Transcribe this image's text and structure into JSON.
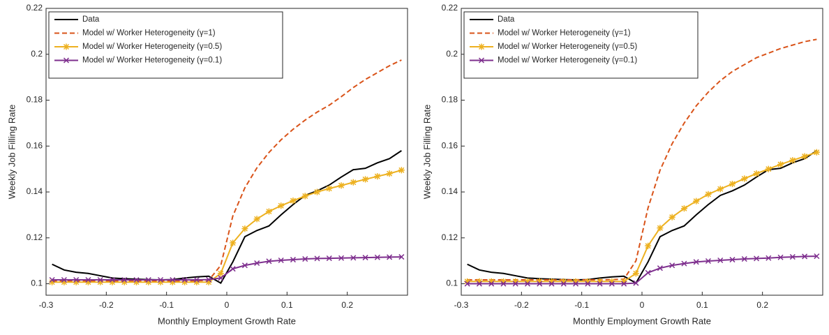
{
  "chart_data": [
    {
      "type": "line",
      "xlabel": "Monthly Employment Growth Rate",
      "ylabel": "Weekly Job Filling Rate",
      "x": [
        -0.29,
        -0.27,
        -0.25,
        -0.23,
        -0.21,
        -0.19,
        -0.17,
        -0.15,
        -0.13,
        -0.11,
        -0.09,
        -0.07,
        -0.05,
        -0.03,
        -0.01,
        0.01,
        0.03,
        0.05,
        0.07,
        0.09,
        0.11,
        0.13,
        0.15,
        0.17,
        0.19,
        0.21,
        0.23,
        0.25,
        0.27,
        0.29
      ],
      "xlim": [
        -0.3,
        0.3
      ],
      "xticks": [
        -0.3,
        -0.2,
        -0.1,
        0,
        0.1,
        0.2
      ],
      "ylim": [
        0.095,
        0.22
      ],
      "yticks": [
        0.1,
        0.12,
        0.14,
        0.16,
        0.18,
        0.2,
        0.22
      ],
      "legend": "northwest",
      "series": [
        {
          "name": "Data",
          "color": "#000000",
          "style": "solid",
          "marker": "none",
          "values": [
            0.1085,
            0.106,
            0.105,
            0.1045,
            0.1035,
            0.1025,
            0.1022,
            0.102,
            0.1018,
            0.1017,
            0.1018,
            0.1025,
            0.103,
            0.1033,
            0.1003,
            0.1095,
            0.1205,
            0.1232,
            0.1252,
            0.13,
            0.1345,
            0.1385,
            0.1405,
            0.143,
            0.1465,
            0.1497,
            0.1503,
            0.1527,
            0.1545,
            0.158
          ]
        },
        {
          "name": "Model w/ Worker Heterogeneity (γ=1)",
          "color": "#d95319",
          "style": "dashed",
          "marker": "none",
          "values": [
            0.1012,
            0.1012,
            0.1012,
            0.1012,
            0.1012,
            0.1012,
            0.1012,
            0.1012,
            0.1012,
            0.1012,
            0.1012,
            0.1012,
            0.1013,
            0.1015,
            0.108,
            0.1295,
            0.1418,
            0.1505,
            0.1572,
            0.1627,
            0.1673,
            0.1713,
            0.1748,
            0.1778,
            0.1815,
            0.1855,
            0.189,
            0.192,
            0.195,
            0.1975
          ]
        },
        {
          "name": "Model w/ Worker Heterogeneity (γ=0.5)",
          "color": "#edb120",
          "style": "solid",
          "marker": "asterisk",
          "values": [
            0.1007,
            0.1007,
            0.1007,
            0.1007,
            0.1007,
            0.1007,
            0.1007,
            0.1007,
            0.1007,
            0.1007,
            0.1007,
            0.1007,
            0.1007,
            0.1007,
            0.1045,
            0.1178,
            0.124,
            0.1282,
            0.1315,
            0.134,
            0.1362,
            0.1382,
            0.14,
            0.1415,
            0.1428,
            0.1442,
            0.1455,
            0.1468,
            0.148,
            0.1495
          ]
        },
        {
          "name": "Model w/ Worker Heterogeneity (γ=0.1)",
          "color": "#7e2f8e",
          "style": "solid",
          "marker": "x",
          "values": [
            0.1017,
            0.1017,
            0.1017,
            0.1017,
            0.1017,
            0.1017,
            0.1017,
            0.1017,
            0.1017,
            0.1017,
            0.1017,
            0.1017,
            0.1017,
            0.1018,
            0.1025,
            0.1065,
            0.108,
            0.109,
            0.1098,
            0.1102,
            0.1105,
            0.1108,
            0.111,
            0.1111,
            0.1112,
            0.1113,
            0.1114,
            0.1115,
            0.1116,
            0.1117
          ]
        }
      ]
    },
    {
      "type": "line",
      "xlabel": "Monthly Employment Growth Rate",
      "ylabel": "Weekly Job Filling Rate",
      "x": [
        -0.29,
        -0.27,
        -0.25,
        -0.23,
        -0.21,
        -0.19,
        -0.17,
        -0.15,
        -0.13,
        -0.11,
        -0.09,
        -0.07,
        -0.05,
        -0.03,
        -0.01,
        0.01,
        0.03,
        0.05,
        0.07,
        0.09,
        0.11,
        0.13,
        0.15,
        0.17,
        0.19,
        0.21,
        0.23,
        0.25,
        0.27,
        0.29
      ],
      "xlim": [
        -0.3,
        0.3
      ],
      "xticks": [
        -0.3,
        -0.2,
        -0.1,
        0,
        0.1,
        0.2
      ],
      "ylim": [
        0.095,
        0.22
      ],
      "yticks": [
        0.1,
        0.12,
        0.14,
        0.16,
        0.18,
        0.2,
        0.22
      ],
      "legend": "northwest",
      "series": [
        {
          "name": "Data",
          "color": "#000000",
          "style": "solid",
          "marker": "none",
          "values": [
            0.1085,
            0.106,
            0.105,
            0.1045,
            0.1035,
            0.1025,
            0.1022,
            0.102,
            0.1018,
            0.1017,
            0.1018,
            0.1025,
            0.103,
            0.1033,
            0.1003,
            0.1095,
            0.1205,
            0.1232,
            0.1252,
            0.13,
            0.1345,
            0.1385,
            0.1405,
            0.143,
            0.1465,
            0.1497,
            0.1503,
            0.1527,
            0.1545,
            0.158
          ]
        },
        {
          "name": "Model w/ Worker Heterogeneity (γ=1)",
          "color": "#d95319",
          "style": "dashed",
          "marker": "none",
          "values": [
            0.1017,
            0.1017,
            0.1017,
            0.1017,
            0.1017,
            0.1017,
            0.1017,
            0.1017,
            0.1017,
            0.1017,
            0.1017,
            0.1017,
            0.1018,
            0.102,
            0.11,
            0.133,
            0.1495,
            0.161,
            0.17,
            0.1775,
            0.1835,
            0.1885,
            0.1925,
            0.1955,
            0.1985,
            0.2005,
            0.2025,
            0.204,
            0.2055,
            0.2065
          ]
        },
        {
          "name": "Model w/ Worker Heterogeneity (γ=0.5)",
          "color": "#edb120",
          "style": "solid",
          "marker": "asterisk",
          "values": [
            0.101,
            0.101,
            0.101,
            0.101,
            0.101,
            0.101,
            0.101,
            0.101,
            0.101,
            0.101,
            0.101,
            0.101,
            0.101,
            0.101,
            0.1045,
            0.1165,
            0.1243,
            0.129,
            0.1328,
            0.136,
            0.139,
            0.1413,
            0.1435,
            0.1458,
            0.148,
            0.15,
            0.152,
            0.1538,
            0.1555,
            0.1573
          ]
        },
        {
          "name": "Model w/ Worker Heterogeneity (γ=0.1)",
          "color": "#7e2f8e",
          "style": "solid",
          "marker": "x",
          "values": [
            0.1,
            0.1,
            0.1,
            0.1,
            0.1,
            0.1,
            0.1,
            0.1,
            0.1,
            0.1,
            0.1,
            0.1,
            0.1,
            0.1,
            0.1003,
            0.1048,
            0.1068,
            0.108,
            0.1088,
            0.1095,
            0.1099,
            0.1102,
            0.1105,
            0.1108,
            0.111,
            0.1112,
            0.1115,
            0.1117,
            0.1119,
            0.112
          ]
        }
      ]
    }
  ]
}
